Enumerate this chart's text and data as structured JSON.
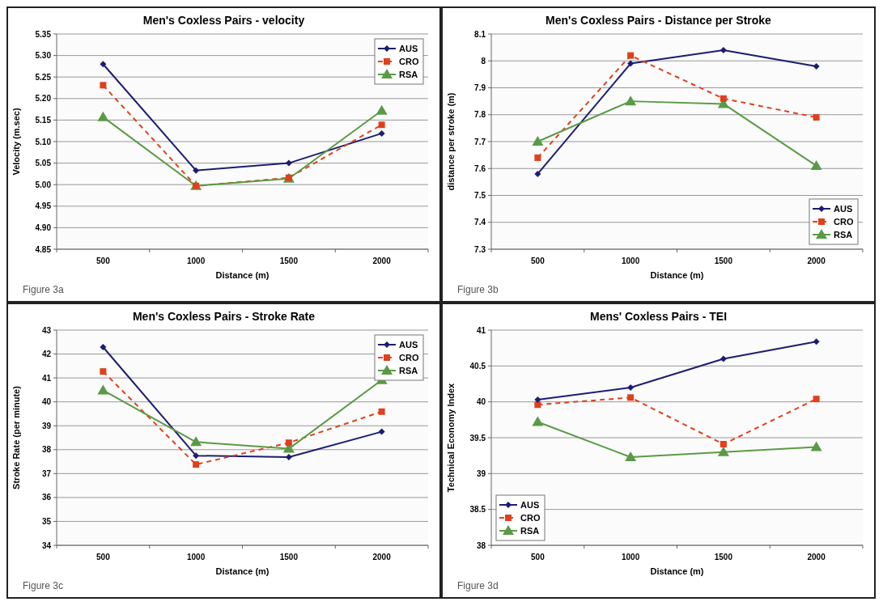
{
  "chart_data": [
    {
      "type": "line",
      "title": "Men's Coxless Pairs - velocity",
      "xlabel": "Distance (m)",
      "ylabel": "Velocity (m.sec)",
      "categories": [
        "500",
        "1000",
        "1500",
        "2000"
      ],
      "ylim": [
        4.85,
        5.35
      ],
      "yticks": [
        4.85,
        {
          "value": 4.9,
          "label": "4.90"
        },
        4.95,
        {
          "value": 5,
          "label": "5.00"
        },
        5.05,
        {
          "value": 5.1,
          "label": "5.10"
        },
        5.15,
        {
          "value": 5.2,
          "label": "5.20"
        },
        5.25,
        {
          "value": 5.3,
          "label": "5.30"
        },
        5.35
      ],
      "grid": "y",
      "legend": "top right",
      "annotations": [
        "Figure 3a"
      ],
      "series": [
        {
          "name": "AUS",
          "color": "#1c1c72",
          "marker": "diamond",
          "line_style": "solid",
          "values": [
            5.28,
            5.033,
            5.05,
            5.119
          ]
        },
        {
          "name": "CRO",
          "color": "#e0401c",
          "marker": "square",
          "line_style": "dashed",
          "values": [
            5.231,
            4.997,
            5.016,
            5.139
          ]
        },
        {
          "name": "RSA",
          "color": "#5a9a46",
          "marker": "triangle",
          "line_style": "solid",
          "values": [
            5.157,
            4.997,
            5.014,
            5.172
          ]
        }
      ]
    },
    {
      "type": "line",
      "title": "Men's Coxless Pairs - Distance per Stroke",
      "xlabel": "Distance (m)",
      "ylabel": "distance per stroke (m)",
      "categories": [
        "500",
        "1000",
        "1500",
        "2000"
      ],
      "ylim": [
        7.3,
        8.1
      ],
      "yticks": [
        7.3,
        7.4,
        7.5,
        7.6,
        7.7,
        7.8,
        7.9,
        8,
        8.1
      ],
      "grid": "y",
      "legend": "bottom right",
      "annotations": [
        "Figure 3b"
      ],
      "series": [
        {
          "name": "AUS",
          "color": "#1c1c72",
          "marker": "diamond",
          "line_style": "solid",
          "values": [
            7.58,
            7.99,
            8.04,
            7.98
          ]
        },
        {
          "name": "CRO",
          "color": "#e0401c",
          "marker": "square",
          "line_style": "dashed",
          "values": [
            7.64,
            8.02,
            7.86,
            7.79
          ]
        },
        {
          "name": "RSA",
          "color": "#5a9a46",
          "marker": "triangle",
          "line_style": "solid",
          "values": [
            7.7,
            7.85,
            7.84,
            7.61
          ]
        }
      ]
    },
    {
      "type": "line",
      "title": "Men's Coxless Pairs - Stroke Rate",
      "xlabel": "Distance (m)",
      "ylabel": "Stroke Rate (per minute)",
      "categories": [
        "500",
        "1000",
        "1500",
        "2000"
      ],
      "ylim": [
        34,
        43
      ],
      "yticks": [
        34,
        35,
        36,
        37,
        38,
        39,
        40,
        41,
        42,
        43
      ],
      "grid": "y",
      "legend": "top right",
      "annotations": [
        "Figure 3c"
      ],
      "series": [
        {
          "name": "AUS",
          "color": "#1c1c72",
          "marker": "diamond",
          "line_style": "solid",
          "values": [
            42.29,
            37.75,
            37.69,
            38.75
          ]
        },
        {
          "name": "CRO",
          "color": "#e0401c",
          "marker": "square",
          "line_style": "dashed",
          "values": [
            41.27,
            37.38,
            38.29,
            39.59
          ]
        },
        {
          "name": "RSA",
          "color": "#5a9a46",
          "marker": "triangle",
          "line_style": "solid",
          "values": [
            40.48,
            38.32,
            38.04,
            40.91
          ]
        }
      ]
    },
    {
      "type": "line",
      "title": "Mens' Coxless Pairs - TEI",
      "xlabel": "Distance (m)",
      "ylabel": "Technical Economy Index",
      "categories": [
        "500",
        "1000",
        "1500",
        "2000"
      ],
      "ylim": [
        38,
        41
      ],
      "yticks": [
        38,
        38.5,
        39,
        39.5,
        40,
        40.5,
        41
      ],
      "grid": "y",
      "legend": "bottom left",
      "annotations": [
        "Figure 3d"
      ],
      "series": [
        {
          "name": "AUS",
          "color": "#1c1c72",
          "marker": "diamond",
          "line_style": "solid",
          "values": [
            40.03,
            40.2,
            40.6,
            40.84
          ]
        },
        {
          "name": "CRO",
          "color": "#e0401c",
          "marker": "square",
          "line_style": "dashed",
          "values": [
            39.96,
            40.06,
            39.41,
            40.04
          ]
        },
        {
          "name": "RSA",
          "color": "#5a9a46",
          "marker": "triangle",
          "line_style": "solid",
          "values": [
            39.72,
            39.23,
            39.3,
            39.37
          ]
        }
      ]
    }
  ]
}
